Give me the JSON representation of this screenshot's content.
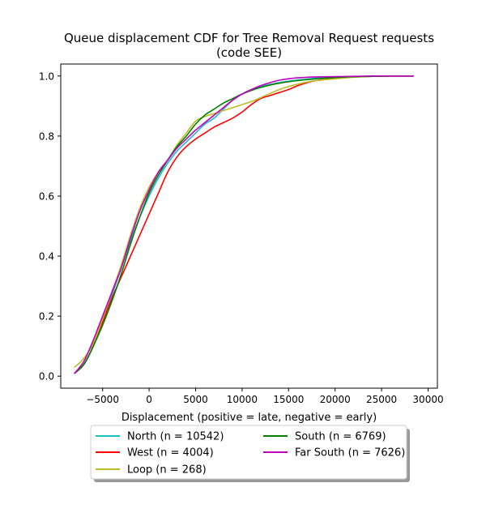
{
  "chart_data": {
    "type": "line",
    "title_lines": [
      "Queue displacement CDF for Tree Removal Request  requests",
      "(code SEE)"
    ],
    "xlabel": "Displacement (positive = late, negative = early)",
    "ylabel": "",
    "xlim": [
      -9500,
      31000
    ],
    "ylim": [
      -0.04,
      1.04
    ],
    "xticks": [
      -5000,
      0,
      5000,
      10000,
      15000,
      20000,
      25000,
      30000
    ],
    "xtick_labels": [
      "−5000",
      "0",
      "5000",
      "10000",
      "15000",
      "20000",
      "25000",
      "30000"
    ],
    "yticks": [
      0.0,
      0.2,
      0.4,
      0.6,
      0.8,
      1.0
    ],
    "ytick_labels": [
      "0.0",
      "0.2",
      "0.4",
      "0.6",
      "0.8",
      "1.0"
    ],
    "grid": false,
    "legend_placement": "below",
    "series": [
      {
        "name": "North (n = 10542)",
        "color": "#17becf",
        "points": [
          [
            -8000,
            0.01
          ],
          [
            -7000,
            0.04
          ],
          [
            -6000,
            0.1
          ],
          [
            -5000,
            0.18
          ],
          [
            -4000,
            0.27
          ],
          [
            -3000,
            0.36
          ],
          [
            -2000,
            0.45
          ],
          [
            -1000,
            0.53
          ],
          [
            0,
            0.6
          ],
          [
            1000,
            0.66
          ],
          [
            2000,
            0.71
          ],
          [
            3000,
            0.75
          ],
          [
            4000,
            0.78
          ],
          [
            5000,
            0.81
          ],
          [
            6000,
            0.84
          ],
          [
            7000,
            0.86
          ],
          [
            8000,
            0.89
          ],
          [
            9000,
            0.92
          ],
          [
            10000,
            0.94
          ],
          [
            11000,
            0.955
          ],
          [
            12000,
            0.965
          ],
          [
            13000,
            0.972
          ],
          [
            14000,
            0.978
          ],
          [
            15000,
            0.983
          ],
          [
            16000,
            0.987
          ],
          [
            17000,
            0.99
          ],
          [
            18000,
            0.993
          ],
          [
            20000,
            0.996
          ],
          [
            22000,
            0.998
          ],
          [
            24000,
            0.999
          ],
          [
            26000,
            1.0
          ],
          [
            28400,
            1.0
          ]
        ]
      },
      {
        "name": "West (n = 4004)",
        "color": "#ff0000",
        "points": [
          [
            -8000,
            0.01
          ],
          [
            -7000,
            0.04
          ],
          [
            -6000,
            0.1
          ],
          [
            -5000,
            0.18
          ],
          [
            -4000,
            0.26
          ],
          [
            -3000,
            0.33
          ],
          [
            -2000,
            0.4
          ],
          [
            -1000,
            0.47
          ],
          [
            0,
            0.54
          ],
          [
            1000,
            0.61
          ],
          [
            2000,
            0.68
          ],
          [
            3000,
            0.73
          ],
          [
            4000,
            0.765
          ],
          [
            5000,
            0.79
          ],
          [
            6000,
            0.81
          ],
          [
            7000,
            0.83
          ],
          [
            8000,
            0.845
          ],
          [
            9000,
            0.86
          ],
          [
            10000,
            0.88
          ],
          [
            11000,
            0.905
          ],
          [
            12000,
            0.925
          ],
          [
            13000,
            0.935
          ],
          [
            14000,
            0.945
          ],
          [
            15000,
            0.955
          ],
          [
            16000,
            0.968
          ],
          [
            17000,
            0.978
          ],
          [
            18000,
            0.985
          ],
          [
            20000,
            0.992
          ],
          [
            22000,
            0.997
          ],
          [
            24000,
            0.999
          ],
          [
            26000,
            1.0
          ],
          [
            28400,
            1.0
          ]
        ]
      },
      {
        "name": "Loop (n = 268)",
        "color": "#bcbd22",
        "points": [
          [
            -8000,
            0.03
          ],
          [
            -7000,
            0.06
          ],
          [
            -6000,
            0.11
          ],
          [
            -5000,
            0.19
          ],
          [
            -4000,
            0.28
          ],
          [
            -3000,
            0.37
          ],
          [
            -2000,
            0.47
          ],
          [
            -1000,
            0.56
          ],
          [
            0,
            0.63
          ],
          [
            1000,
            0.68
          ],
          [
            2000,
            0.72
          ],
          [
            3000,
            0.77
          ],
          [
            4000,
            0.81
          ],
          [
            5000,
            0.85
          ],
          [
            6000,
            0.865
          ],
          [
            7000,
            0.875
          ],
          [
            8000,
            0.885
          ],
          [
            9000,
            0.895
          ],
          [
            10000,
            0.905
          ],
          [
            11000,
            0.915
          ],
          [
            12000,
            0.928
          ],
          [
            13000,
            0.942
          ],
          [
            14000,
            0.955
          ],
          [
            15000,
            0.965
          ],
          [
            16000,
            0.973
          ],
          [
            17000,
            0.98
          ],
          [
            18000,
            0.985
          ],
          [
            20000,
            0.991
          ],
          [
            22000,
            0.996
          ],
          [
            24000,
            0.999
          ],
          [
            26000,
            1.0
          ],
          [
            28400,
            1.0
          ]
        ]
      },
      {
        "name": "South (n = 6769)",
        "color": "#008000",
        "points": [
          [
            -8000,
            0.01
          ],
          [
            -7000,
            0.04
          ],
          [
            -6000,
            0.1
          ],
          [
            -5000,
            0.17
          ],
          [
            -4000,
            0.25
          ],
          [
            -3000,
            0.34
          ],
          [
            -2000,
            0.44
          ],
          [
            -1000,
            0.53
          ],
          [
            0,
            0.61
          ],
          [
            1000,
            0.67
          ],
          [
            2000,
            0.72
          ],
          [
            3000,
            0.765
          ],
          [
            4000,
            0.8
          ],
          [
            5000,
            0.84
          ],
          [
            6000,
            0.87
          ],
          [
            7000,
            0.89
          ],
          [
            8000,
            0.91
          ],
          [
            9000,
            0.925
          ],
          [
            10000,
            0.94
          ],
          [
            11000,
            0.952
          ],
          [
            12000,
            0.962
          ],
          [
            13000,
            0.97
          ],
          [
            14000,
            0.976
          ],
          [
            15000,
            0.981
          ],
          [
            16000,
            0.985
          ],
          [
            17000,
            0.988
          ],
          [
            18000,
            0.991
          ],
          [
            20000,
            0.995
          ],
          [
            22000,
            0.998
          ],
          [
            24000,
            0.999
          ],
          [
            26000,
            1.0
          ],
          [
            28400,
            1.0
          ]
        ]
      },
      {
        "name": "Far South (n = 7626)",
        "color": "#bf00bf",
        "points": [
          [
            -8000,
            0.01
          ],
          [
            -7000,
            0.05
          ],
          [
            -6000,
            0.12
          ],
          [
            -5000,
            0.2
          ],
          [
            -4000,
            0.28
          ],
          [
            -3000,
            0.36
          ],
          [
            -2000,
            0.46
          ],
          [
            -1000,
            0.55
          ],
          [
            0,
            0.62
          ],
          [
            1000,
            0.68
          ],
          [
            2000,
            0.72
          ],
          [
            3000,
            0.76
          ],
          [
            4000,
            0.79
          ],
          [
            5000,
            0.82
          ],
          [
            6000,
            0.845
          ],
          [
            7000,
            0.87
          ],
          [
            8000,
            0.895
          ],
          [
            9000,
            0.92
          ],
          [
            10000,
            0.94
          ],
          [
            11000,
            0.955
          ],
          [
            12000,
            0.968
          ],
          [
            13000,
            0.978
          ],
          [
            14000,
            0.986
          ],
          [
            15000,
            0.991
          ],
          [
            16000,
            0.994
          ],
          [
            17000,
            0.996
          ],
          [
            18000,
            0.997
          ],
          [
            20000,
            0.998
          ],
          [
            22000,
            0.999
          ],
          [
            24000,
            1.0
          ],
          [
            26000,
            1.0
          ],
          [
            28400,
            1.0
          ]
        ]
      }
    ]
  }
}
